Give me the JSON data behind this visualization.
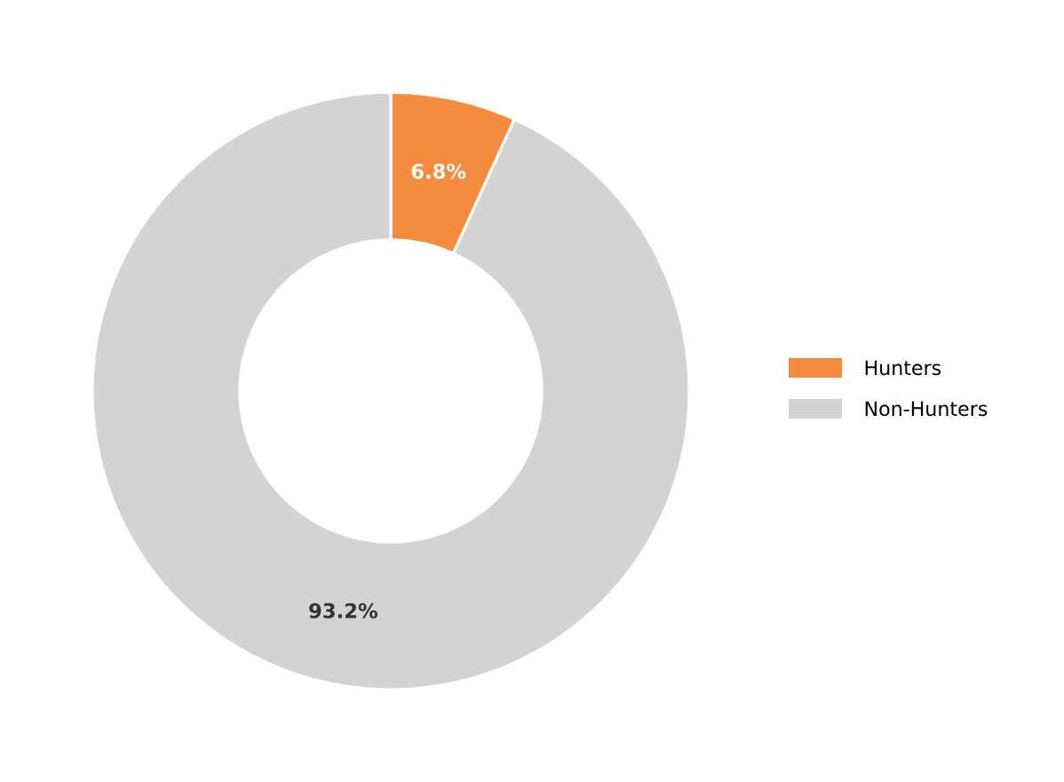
{
  "chart_data": {
    "type": "donut",
    "categories": [
      "Hunters",
      "Non-Hunters"
    ],
    "values": [
      6.8,
      93.2
    ],
    "colors": [
      "#f58b3c",
      "#d3d3d3"
    ],
    "value_labels": [
      "6.8%",
      "93.2%"
    ],
    "legend": "right"
  }
}
